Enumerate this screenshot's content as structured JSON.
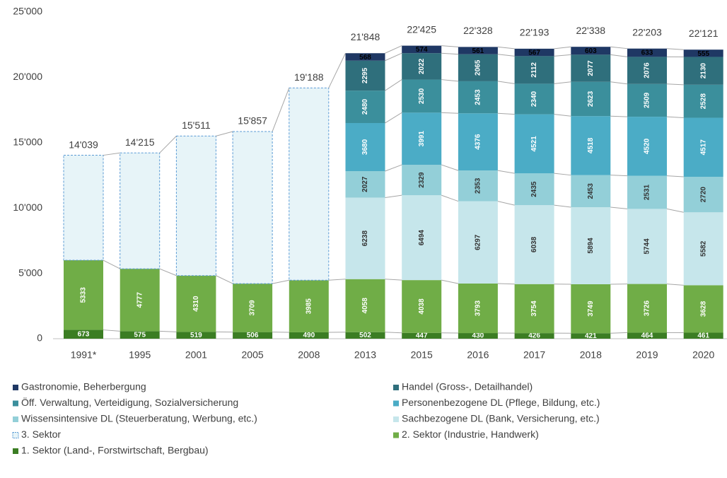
{
  "chart_data": {
    "type": "stacked_bar",
    "categories": [
      "1991*",
      "1995",
      "2001",
      "2005",
      "2008",
      "2013",
      "2015",
      "2016",
      "2017",
      "2018",
      "2019",
      "2020"
    ],
    "series": [
      {
        "name": "Gastronomie, Beherbergung",
        "color": "#1f3864",
        "values": [
          null,
          null,
          null,
          null,
          null,
          568,
          574,
          561,
          567,
          603,
          633,
          555
        ]
      },
      {
        "name": "Handel (Gross-, Detailhandel)",
        "color": "#2f6f7c",
        "values": [
          null,
          null,
          null,
          null,
          null,
          2295,
          2022,
          2065,
          2112,
          2077,
          2076,
          2130
        ]
      },
      {
        "name": "Öff. Verwaltung, Verteidigung, Sozialversicherung",
        "color": "#3b8f9c",
        "values": [
          null,
          null,
          null,
          null,
          null,
          2480,
          2530,
          2453,
          2340,
          2623,
          2509,
          2528
        ]
      },
      {
        "name": "Personenbezogene DL (Pflege, Bildung, etc.)",
        "color": "#4bacc6",
        "values": [
          null,
          null,
          null,
          null,
          null,
          3680,
          3991,
          4376,
          4521,
          4518,
          4520,
          4517
        ]
      },
      {
        "name": "Wissensintensive DL (Steuerberatung, Werbung, etc.)",
        "color": "#93cfd8",
        "values": [
          null,
          null,
          null,
          null,
          null,
          2027,
          2329,
          2353,
          2435,
          2453,
          2531,
          2720
        ]
      },
      {
        "name": "Sachbezogene DL (Bank, Versicherung, etc.)",
        "color": "#c6e6eb",
        "values": [
          null,
          null,
          null,
          null,
          null,
          6238,
          6494,
          6297,
          6038,
          5894,
          5744,
          5582
        ]
      },
      {
        "name": "3. Sektor",
        "color": "#e7f4f8",
        "values": [
          8033,
          8863,
          10682,
          11642,
          14713,
          null,
          null,
          null,
          null,
          null,
          null,
          null
        ]
      },
      {
        "name": "2. Sektor (Industrie, Handwerk)",
        "color": "#70ad47",
        "values": [
          5333,
          4777,
          4310,
          3709,
          3985,
          4058,
          4038,
          3793,
          3754,
          3749,
          3726,
          3628
        ]
      },
      {
        "name": "1. Sektor (Land-, Forstwirtschaft, Bergbau)",
        "color": "#3b7d23",
        "values": [
          673,
          575,
          519,
          506,
          490,
          502,
          447,
          430,
          426,
          421,
          464,
          461
        ]
      }
    ],
    "totals": {
      "values": [
        14039,
        14215,
        15511,
        15857,
        19188,
        21848,
        22425,
        22328,
        22193,
        22338,
        22203,
        22121
      ],
      "value_labels": [
        "14'039",
        "14'215",
        "15'511",
        "15'857",
        "19'188",
        "21'848",
        "22'425",
        "22'328",
        "22'193",
        "22'338",
        "22'203",
        "22'121"
      ]
    },
    "ylim": [
      0,
      25000
    ],
    "yticks": [
      0,
      {
        "value": 5000,
        "label": "5'000"
      },
      {
        "value": 10000,
        "label": "10'000"
      },
      {
        "value": 15000,
        "label": "15'000"
      },
      {
        "value": 20000,
        "label": "20'000"
      },
      {
        "value": 25000,
        "label": "25'000"
      }
    ]
  }
}
